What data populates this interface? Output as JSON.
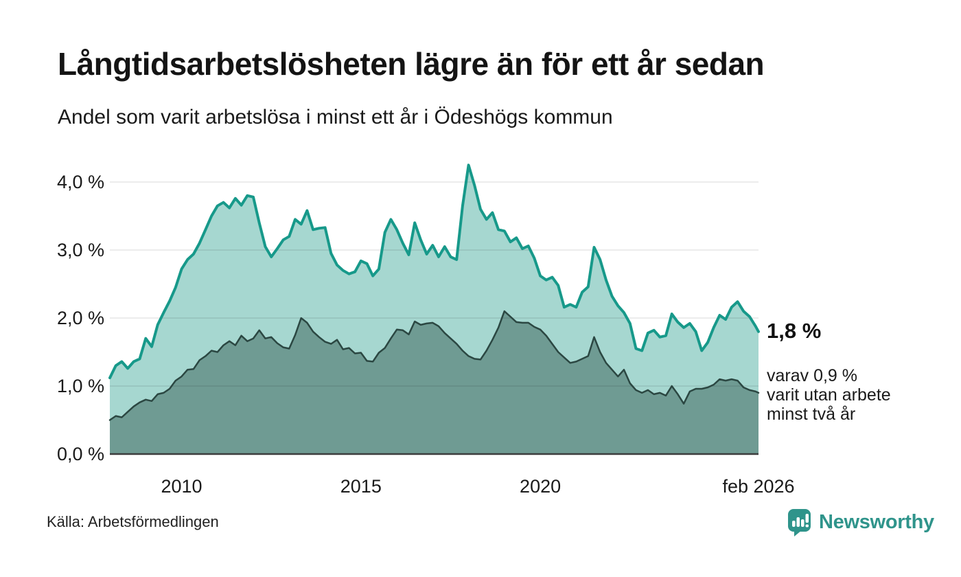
{
  "chart_data": {
    "type": "area",
    "title": "Långtidsarbetslösheten lägre än för ett år sedan",
    "subtitle": "Andel som varit arbetslösa i minst ett år i Ödeshögs kommun",
    "unit": "%",
    "x_min": 2008.0,
    "x_max": 2026.083,
    "x_step": 0.1666667,
    "ylim": [
      0,
      4.25
    ],
    "grid": true,
    "y_ticks": [
      {
        "v": 0,
        "label": "0,0 %"
      },
      {
        "v": 1,
        "label": "1,0 %"
      },
      {
        "v": 2,
        "label": "2,0 %"
      },
      {
        "v": 3,
        "label": "3,0 %"
      },
      {
        "v": 4,
        "label": "4,0 %"
      }
    ],
    "x_ticks": [
      {
        "t": 2010,
        "label": "2010"
      },
      {
        "t": 2015,
        "label": "2015"
      },
      {
        "t": 2020,
        "label": "2020"
      },
      {
        "t": 2026.083,
        "label": "feb 2026"
      }
    ],
    "series": [
      {
        "id": "arbetslosa-minst-ett-ar",
        "line_color": "#17998a",
        "fill_color": "#a6d7d0",
        "line_width": 4,
        "values": [
          1.12,
          1.3,
          1.36,
          1.26,
          1.36,
          1.4,
          1.7,
          1.58,
          1.9,
          2.08,
          2.25,
          2.45,
          2.72,
          2.86,
          2.94,
          3.1,
          3.3,
          3.5,
          3.65,
          3.7,
          3.62,
          3.76,
          3.66,
          3.8,
          3.78,
          3.4,
          3.05,
          2.9,
          3.02,
          3.15,
          3.2,
          3.45,
          3.38,
          3.58,
          3.3,
          3.32,
          3.33,
          2.95,
          2.78,
          2.7,
          2.65,
          2.68,
          2.84,
          2.8,
          2.62,
          2.72,
          3.26,
          3.45,
          3.3,
          3.1,
          2.93,
          3.4,
          3.15,
          2.94,
          3.07,
          2.9,
          3.05,
          2.9,
          2.86,
          3.65,
          4.25,
          3.95,
          3.6,
          3.45,
          3.55,
          3.3,
          3.28,
          3.12,
          3.18,
          3.02,
          3.06,
          2.88,
          2.62,
          2.56,
          2.6,
          2.48,
          2.16,
          2.2,
          2.16,
          2.38,
          2.46,
          3.04,
          2.86,
          2.56,
          2.32,
          2.18,
          2.08,
          1.92,
          1.55,
          1.52,
          1.78,
          1.82,
          1.72,
          1.74,
          2.06,
          1.94,
          1.86,
          1.92,
          1.8,
          1.52,
          1.64,
          1.86,
          2.04,
          1.98,
          2.16,
          2.24,
          2.1,
          2.02,
          1.88,
          1.8
        ]
      },
      {
        "id": "utan-arbete-minst-tva-ar",
        "line_color": "#2b4742",
        "fill_color": "#6f9b93",
        "line_width": 2.5,
        "values": [
          0.5,
          0.56,
          0.54,
          0.62,
          0.7,
          0.76,
          0.8,
          0.78,
          0.88,
          0.9,
          0.96,
          1.08,
          1.14,
          1.24,
          1.25,
          1.38,
          1.44,
          1.52,
          1.5,
          1.6,
          1.66,
          1.6,
          1.74,
          1.66,
          1.7,
          1.82,
          1.7,
          1.72,
          1.63,
          1.57,
          1.55,
          1.75,
          2.0,
          1.93,
          1.8,
          1.72,
          1.65,
          1.62,
          1.68,
          1.54,
          1.56,
          1.48,
          1.49,
          1.37,
          1.36,
          1.49,
          1.56,
          1.7,
          1.83,
          1.82,
          1.76,
          1.95,
          1.9,
          1.92,
          1.93,
          1.88,
          1.78,
          1.7,
          1.62,
          1.52,
          1.44,
          1.4,
          1.39,
          1.52,
          1.68,
          1.86,
          2.1,
          2.02,
          1.94,
          1.93,
          1.93,
          1.87,
          1.83,
          1.74,
          1.62,
          1.5,
          1.42,
          1.34,
          1.36,
          1.4,
          1.44,
          1.72,
          1.5,
          1.34,
          1.24,
          1.14,
          1.24,
          1.04,
          0.94,
          0.9,
          0.94,
          0.88,
          0.9,
          0.86,
          1.0,
          0.88,
          0.74,
          0.92,
          0.96,
          0.96,
          0.98,
          1.02,
          1.1,
          1.08,
          1.1,
          1.08,
          0.98,
          0.94,
          0.92,
          0.9
        ]
      }
    ],
    "latest_values": {
      "total": "1,8 %",
      "two_years": "0,9 %"
    }
  },
  "annotations": {
    "latest_total": "1,8 %",
    "secondary_line1": "varav 0,9 %",
    "secondary_line2": "varit utan arbete",
    "secondary_line3": "minst två år"
  },
  "footer": {
    "source": "Källa: Arbetsförmedlingen",
    "brand": "Newsworthy"
  },
  "colors": {
    "accent_line": "#17998a",
    "accent_fill": "#a6d7d0",
    "dark_line": "#2b4742",
    "dark_fill": "#6f9b93",
    "gridline": "rgba(0,0,0,0.10)",
    "axis_line": "#3d3d3d",
    "brand_teal": "#2f948b"
  }
}
